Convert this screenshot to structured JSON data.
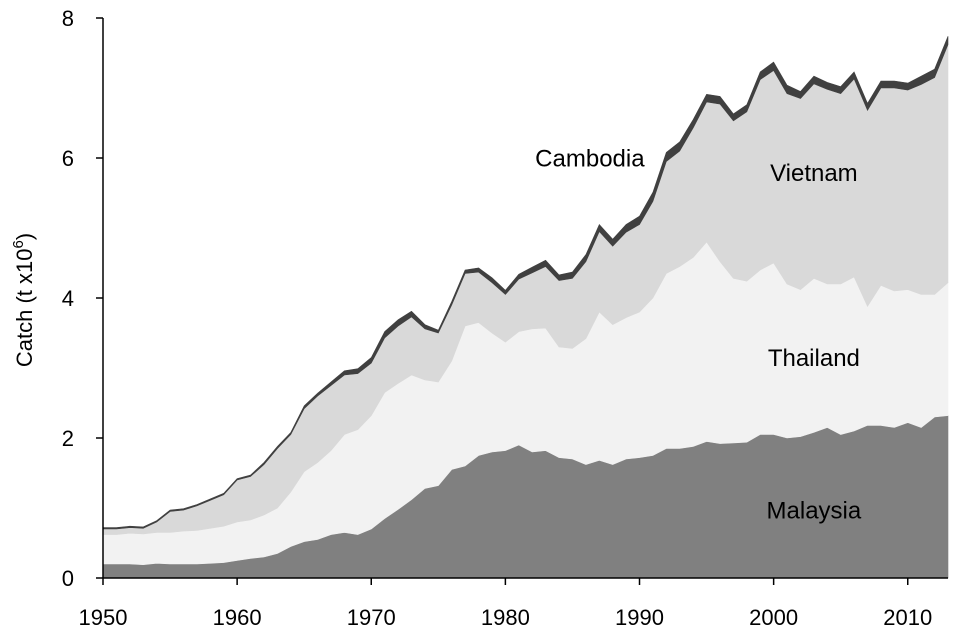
{
  "chart_data": {
    "type": "area",
    "stacked": true,
    "title": "",
    "xlabel": "",
    "ylabel": "Catch (t x10^6)",
    "ylabel_main": "Catch (t x10",
    "ylabel_sup": "6",
    "ylabel_tail": ")",
    "xlim": [
      1950,
      2013
    ],
    "ylim": [
      0,
      8
    ],
    "x_ticks": [
      1950,
      1960,
      1970,
      1980,
      1990,
      2000,
      2010
    ],
    "y_ticks": [
      0,
      2,
      4,
      6,
      8
    ],
    "grid": false,
    "legend": "inline labels",
    "x": [
      1950,
      1951,
      1952,
      1953,
      1954,
      1955,
      1956,
      1957,
      1958,
      1959,
      1960,
      1961,
      1962,
      1963,
      1964,
      1965,
      1966,
      1967,
      1968,
      1969,
      1970,
      1971,
      1972,
      1973,
      1974,
      1975,
      1976,
      1977,
      1978,
      1979,
      1980,
      1981,
      1982,
      1983,
      1984,
      1985,
      1986,
      1987,
      1988,
      1989,
      1990,
      1991,
      1992,
      1993,
      1994,
      1995,
      1996,
      1997,
      1998,
      1999,
      2000,
      2001,
      2002,
      2003,
      2004,
      2005,
      2006,
      2007,
      2008,
      2009,
      2010,
      2011,
      2012,
      2013
    ],
    "series": [
      {
        "name": "Malaysia",
        "color": "#808080",
        "values": [
          0.2,
          0.2,
          0.2,
          0.19,
          0.21,
          0.2,
          0.2,
          0.2,
          0.21,
          0.22,
          0.25,
          0.28,
          0.3,
          0.35,
          0.45,
          0.52,
          0.55,
          0.62,
          0.65,
          0.62,
          0.7,
          0.85,
          0.98,
          1.12,
          1.28,
          1.32,
          1.55,
          1.6,
          1.75,
          1.8,
          1.82,
          1.9,
          1.8,
          1.82,
          1.72,
          1.7,
          1.62,
          1.68,
          1.62,
          1.7,
          1.72,
          1.75,
          1.85,
          1.85,
          1.88,
          1.95,
          1.92,
          1.93,
          1.94,
          2.05,
          2.05,
          2.0,
          2.02,
          2.08,
          2.15,
          2.05,
          2.1,
          2.18,
          2.18,
          2.15,
          2.22,
          2.15,
          2.3,
          2.32
        ]
      },
      {
        "name": "Thailand",
        "color": "#f2f2f2",
        "values": [
          0.42,
          0.42,
          0.44,
          0.44,
          0.44,
          0.45,
          0.47,
          0.48,
          0.5,
          0.52,
          0.55,
          0.55,
          0.6,
          0.65,
          0.78,
          1.0,
          1.1,
          1.2,
          1.4,
          1.5,
          1.62,
          1.8,
          1.8,
          1.78,
          1.55,
          1.48,
          1.55,
          2.0,
          1.9,
          1.7,
          1.55,
          1.62,
          1.76,
          1.75,
          1.58,
          1.58,
          1.8,
          2.12,
          2.0,
          2.02,
          2.08,
          2.25,
          2.5,
          2.6,
          2.7,
          2.85,
          2.6,
          2.35,
          2.3,
          2.35,
          2.45,
          2.2,
          2.1,
          2.2,
          2.05,
          2.15,
          2.2,
          1.7,
          2.0,
          1.95,
          1.9,
          1.9,
          1.75,
          1.9
        ]
      },
      {
        "name": "Vietnam",
        "color": "#d9d9d9",
        "values": [
          0.08,
          0.08,
          0.08,
          0.08,
          0.15,
          0.3,
          0.3,
          0.35,
          0.4,
          0.45,
          0.6,
          0.62,
          0.72,
          0.85,
          0.82,
          0.9,
          0.95,
          0.93,
          0.85,
          0.8,
          0.75,
          0.78,
          0.82,
          0.83,
          0.73,
          0.7,
          0.8,
          0.75,
          0.72,
          0.72,
          0.68,
          0.75,
          0.8,
          0.88,
          0.95,
          1.0,
          1.1,
          1.15,
          1.12,
          1.22,
          1.25,
          1.38,
          1.6,
          1.65,
          1.85,
          2.0,
          2.25,
          2.25,
          2.42,
          2.72,
          2.75,
          2.72,
          2.73,
          2.78,
          2.78,
          2.72,
          2.83,
          2.8,
          2.82,
          2.9,
          2.85,
          3.0,
          3.1,
          3.4
        ]
      },
      {
        "name": "Cambodia",
        "color": "#404040",
        "values": [
          0.02,
          0.02,
          0.02,
          0.02,
          0.02,
          0.02,
          0.02,
          0.02,
          0.02,
          0.02,
          0.02,
          0.02,
          0.03,
          0.03,
          0.03,
          0.04,
          0.04,
          0.05,
          0.06,
          0.07,
          0.08,
          0.09,
          0.09,
          0.08,
          0.06,
          0.04,
          0.05,
          0.05,
          0.06,
          0.07,
          0.06,
          0.07,
          0.08,
          0.09,
          0.08,
          0.09,
          0.1,
          0.1,
          0.1,
          0.11,
          0.12,
          0.13,
          0.13,
          0.13,
          0.12,
          0.11,
          0.11,
          0.1,
          0.1,
          0.11,
          0.12,
          0.12,
          0.1,
          0.11,
          0.1,
          0.1,
          0.1,
          0.1,
          0.1,
          0.1,
          0.1,
          0.12,
          0.12,
          0.12
        ]
      }
    ],
    "annotations": [
      {
        "text": "Malaysia",
        "x": 2003.0,
        "y": 0.85
      },
      {
        "text": "Thailand",
        "x": 2003.0,
        "y": 3.03
      },
      {
        "text": "Vietnam",
        "x": 2003.0,
        "y": 5.67
      },
      {
        "text": "Cambodia",
        "x": 1986.3,
        "y": 5.88
      }
    ]
  }
}
